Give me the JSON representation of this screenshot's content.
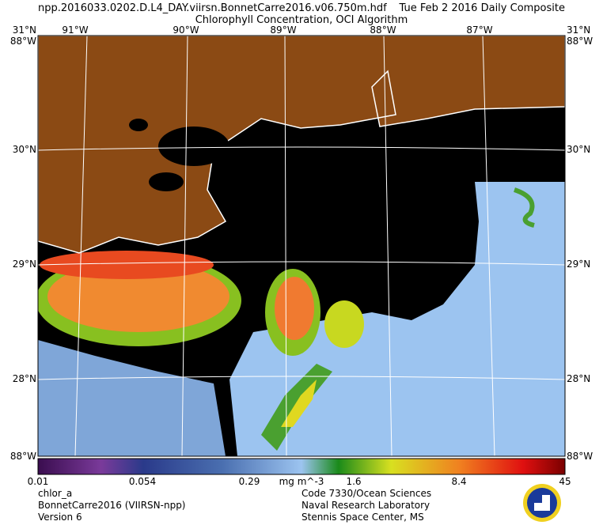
{
  "header": {
    "filename": "npp.2016033.0202.D.L4_DAY.viirsn.BonnetCarre2016.v06.750m.hdf",
    "date": "Tue Feb  2 2016 Daily Composite",
    "subtitle": "Chlorophyll Concentration, OCI Algorithm"
  },
  "map": {
    "top_labels": [
      "91°W",
      "90°W",
      "89°W",
      "88°W",
      "87°W"
    ],
    "left_labels": [
      "31°N",
      "30°N",
      "29°N",
      "28°N"
    ],
    "right_labels": [
      "31°N",
      "30°N",
      "29°N",
      "28°N"
    ],
    "corner_labels": [
      "88°W",
      "88°W",
      "88°W",
      "88°W"
    ]
  },
  "colorbar": {
    "ticks": [
      "0.01",
      "0.054",
      "0.29",
      "1.6",
      "8.4",
      "45"
    ],
    "units": "mg m^-3"
  },
  "footer": {
    "left": [
      "chlor_a",
      "BonnetCarre2016 (VIIRSN-npp)",
      "Version 6"
    ],
    "right": [
      "Code 7330/Ocean Sciences",
      "Naval Research Laboratory",
      "Stennis Space Center, MS"
    ]
  }
}
